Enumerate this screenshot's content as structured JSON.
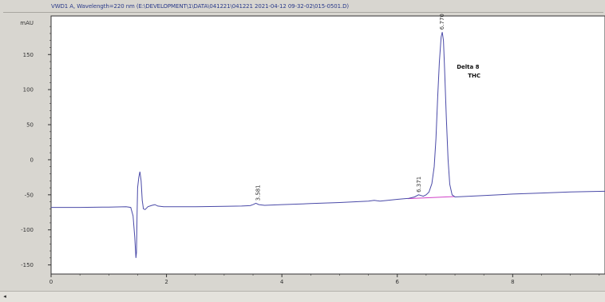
{
  "window": {
    "title": "VWD1 A, Wavelength=220 nm (E:\\DEVELOPMENT\\1\\DATA\\041221\\041221 2021-04-12 09-32-02\\015-0501.D)"
  },
  "status_bar": {
    "scroll_left_glyph": "◂"
  },
  "chart_data": {
    "type": "line",
    "title": "VWD1 A, Wavelength=220 nm (E:\\DEVELOPMENT\\1\\DATA\\041221\\041221 2021-04-12 09-32-02\\015-0501.D)",
    "ylabel": "mAU",
    "xlabel": "",
    "xlim": [
      0,
      9.6
    ],
    "ylim": [
      -163,
      205
    ],
    "x_ticks": [
      0,
      2,
      4,
      6,
      8
    ],
    "y_ticks": [
      -150,
      -100,
      -50,
      0,
      50,
      100,
      150
    ],
    "grid": false,
    "colors": {
      "signal": "#4a4aa8",
      "baseline": "#d040c8",
      "axis": "#333333",
      "plot_bg": "#ffffff"
    },
    "series": [
      {
        "values": [
          [
            0.0,
            -68
          ],
          [
            0.5,
            -68
          ],
          [
            1.0,
            -67.5
          ],
          [
            1.3,
            -67
          ],
          [
            1.38,
            -68
          ],
          [
            1.42,
            -80
          ],
          [
            1.45,
            -110
          ],
          [
            1.47,
            -140
          ],
          [
            1.48,
            -132
          ],
          [
            1.49,
            -80
          ],
          [
            1.5,
            -40
          ],
          [
            1.52,
            -25
          ],
          [
            1.54,
            -17
          ],
          [
            1.56,
            -30
          ],
          [
            1.58,
            -58
          ],
          [
            1.6,
            -70
          ],
          [
            1.63,
            -71
          ],
          [
            1.68,
            -67
          ],
          [
            1.75,
            -65
          ],
          [
            1.8,
            -64
          ],
          [
            1.85,
            -66
          ],
          [
            1.95,
            -67
          ],
          [
            2.5,
            -67
          ],
          [
            3.0,
            -66.5
          ],
          [
            3.3,
            -66
          ],
          [
            3.45,
            -65.5
          ],
          [
            3.5,
            -64
          ],
          [
            3.55,
            -62
          ],
          [
            3.6,
            -64
          ],
          [
            3.7,
            -65
          ],
          [
            4.0,
            -64
          ],
          [
            4.5,
            -62.5
          ],
          [
            5.0,
            -61
          ],
          [
            5.5,
            -59
          ],
          [
            5.6,
            -58
          ],
          [
            5.65,
            -58.5
          ],
          [
            5.7,
            -59
          ],
          [
            6.0,
            -56.5
          ],
          [
            6.2,
            -55
          ],
          [
            6.3,
            -53
          ],
          [
            6.37,
            -50
          ],
          [
            6.45,
            -52
          ],
          [
            6.5,
            -50
          ],
          [
            6.55,
            -46
          ],
          [
            6.6,
            -34
          ],
          [
            6.64,
            -10
          ],
          [
            6.67,
            30
          ],
          [
            6.7,
            90
          ],
          [
            6.73,
            140
          ],
          [
            6.76,
            175
          ],
          [
            6.78,
            182
          ],
          [
            6.8,
            170
          ],
          [
            6.82,
            130
          ],
          [
            6.85,
            60
          ],
          [
            6.88,
            0
          ],
          [
            6.91,
            -35
          ],
          [
            6.95,
            -50
          ],
          [
            7.0,
            -53
          ],
          [
            7.5,
            -51
          ],
          [
            8.0,
            -49
          ],
          [
            8.5,
            -47.5
          ],
          [
            9.0,
            -46
          ],
          [
            9.6,
            -45
          ]
        ]
      }
    ],
    "baseline_segments": [
      {
        "x": [
          6.18,
          7.0
        ],
        "y": [
          -55.5,
          -52.5
        ]
      }
    ],
    "peak_labels": [
      {
        "x": 3.581,
        "y": -62,
        "text": "3.581"
      },
      {
        "x": 6.371,
        "y": -50,
        "text": "6.371"
      },
      {
        "x": 6.77,
        "y": 182,
        "text": "6.770"
      }
    ],
    "annotations": [
      {
        "x": 7.03,
        "y": 130,
        "lines": [
          "Delta 8",
          "THC"
        ]
      }
    ]
  }
}
